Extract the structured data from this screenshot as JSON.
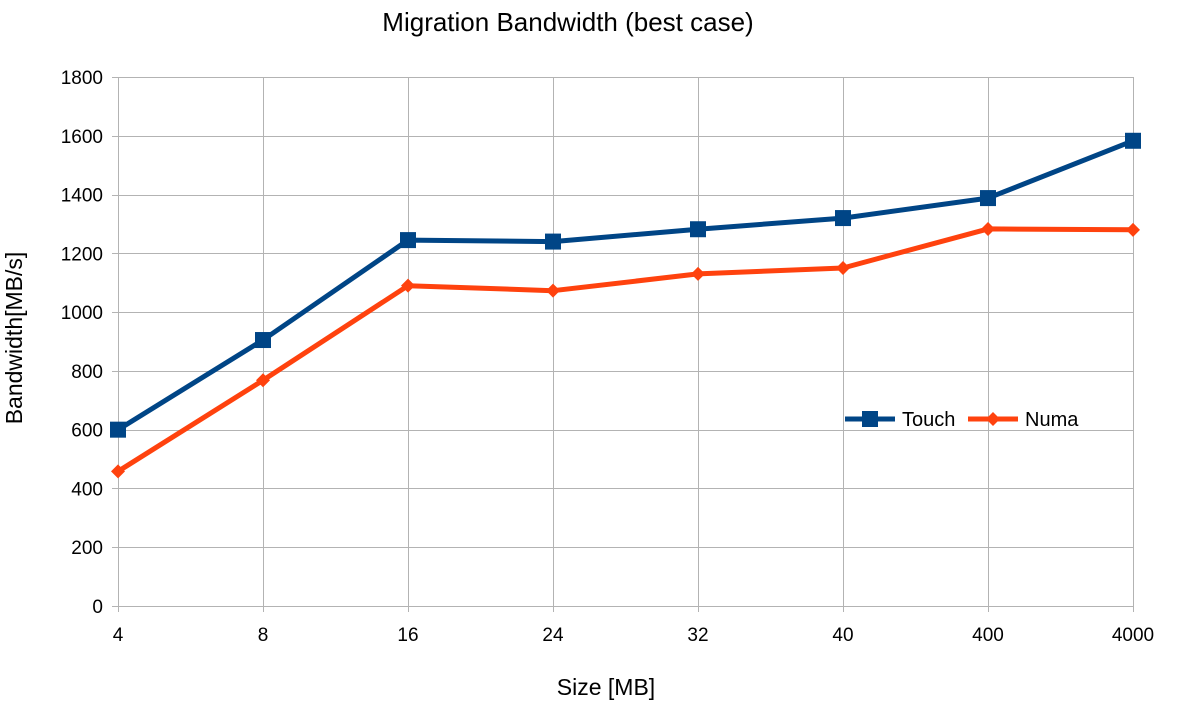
{
  "chart_data": {
    "type": "line",
    "title": "Migration Bandwidth (best case)",
    "xlabel": "Size [MB]",
    "ylabel": "Bandwidth[MB/s]",
    "categories": [
      "4",
      "8",
      "16",
      "24",
      "32",
      "40",
      "400",
      "4000"
    ],
    "ylim": [
      0,
      1800
    ],
    "yticks": [
      0,
      200,
      400,
      600,
      800,
      1000,
      1200,
      1400,
      1600,
      1800
    ],
    "grid": true,
    "legend_position": "right",
    "series": [
      {
        "name": "Touch",
        "color": "#004586",
        "marker": "square",
        "values": [
          600,
          905,
          1245,
          1240,
          1282,
          1320,
          1388,
          1583
        ]
      },
      {
        "name": "Numa",
        "color": "#ff420e",
        "marker": "diamond",
        "values": [
          458,
          768,
          1090,
          1073,
          1130,
          1150,
          1283,
          1280
        ]
      }
    ]
  }
}
